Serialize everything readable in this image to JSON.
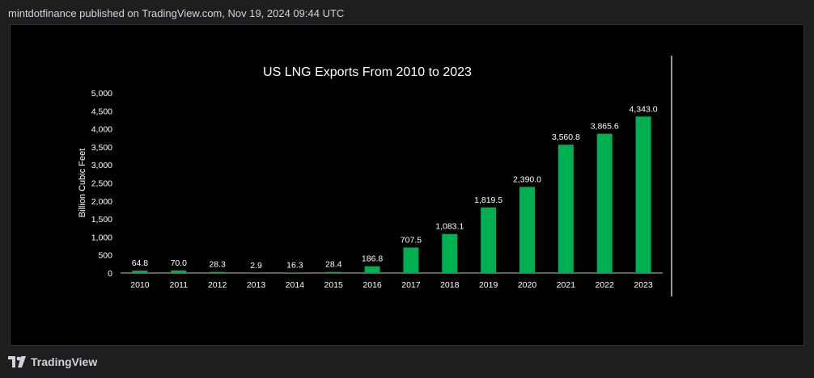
{
  "header": {
    "text": "mintdotfinance published on TradingView.com, Nov 19, 2024 09:44 UTC"
  },
  "footer": {
    "brand": "TradingView",
    "logo_icon": "tradingview-logo-icon"
  },
  "colors": {
    "bar": "#00b050",
    "text": "#ffffff",
    "axis": "#ffffff"
  },
  "chart_data": {
    "type": "bar",
    "title": "US LNG Exports From 2010 to 2023",
    "xlabel": "",
    "ylabel": "Billion Cubic Feet",
    "ylim": [
      0,
      5000
    ],
    "yticks": [
      0,
      500,
      1000,
      1500,
      2000,
      2500,
      3000,
      3500,
      4000,
      4500,
      5000
    ],
    "ytick_labels": [
      "0",
      "500",
      "1,000",
      "1,500",
      "2,000",
      "2,500",
      "3,000",
      "3,500",
      "4,000",
      "4,500",
      "5,000"
    ],
    "categories": [
      "2010",
      "2011",
      "2012",
      "2013",
      "2014",
      "2015",
      "2016",
      "2017",
      "2018",
      "2019",
      "2020",
      "2021",
      "2022",
      "2023"
    ],
    "values": [
      64.8,
      70.0,
      28.3,
      2.9,
      16.3,
      28.4,
      186.8,
      707.5,
      1083.1,
      1819.5,
      2390.0,
      3560.8,
      3865.6,
      4343.0
    ],
    "data_labels": [
      "64.8",
      "70.0",
      "28.3",
      "2.9",
      "16.3",
      "28.4",
      "186.8",
      "707.5",
      "1,083.1",
      "1,819.5",
      "2,390.0",
      "3,560.8",
      "3,865.6",
      "4,343.0"
    ],
    "grid": false,
    "legend": "none"
  }
}
